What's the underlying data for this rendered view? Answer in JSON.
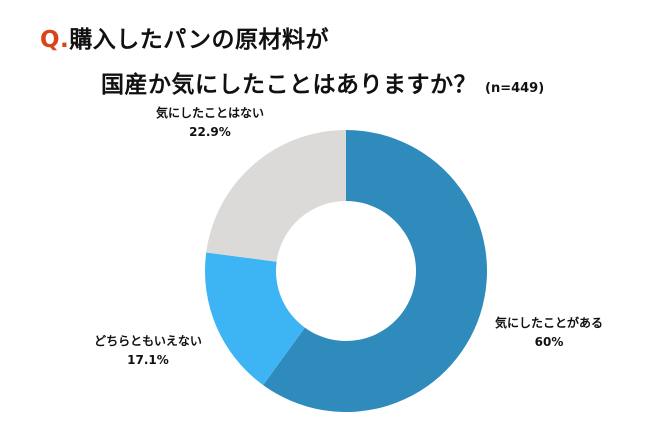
{
  "title": {
    "q_mark": "Q.",
    "line1": "購入したパンの原材料が",
    "line2": "国産か気にしたことはありますか？",
    "n_note": "(n=449)"
  },
  "chart_data": {
    "type": "pie",
    "donut": true,
    "start_angle_deg": 0,
    "direction": "clockwise",
    "slices": [
      {
        "label": "気にしたことがある",
        "value": 60,
        "value_label": "60%",
        "color": "#2e8bbc"
      },
      {
        "label": "どちらともいえない",
        "value": 17.1,
        "value_label": "17.1%",
        "color": "#3db5f5"
      },
      {
        "label": "気にしたことはない",
        "value": 22.9,
        "value_label": "22.9%",
        "color": "#dcdad8"
      }
    ]
  }
}
